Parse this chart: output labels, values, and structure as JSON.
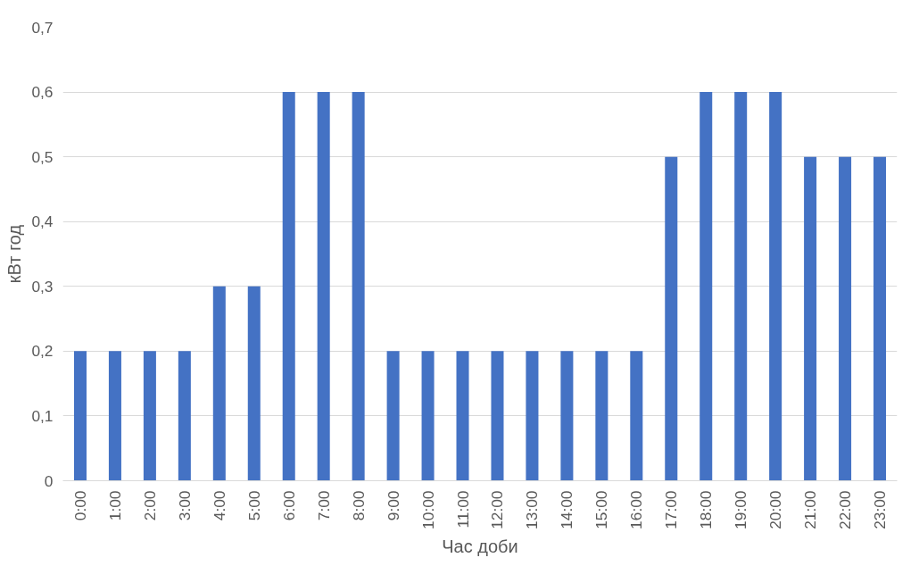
{
  "chart_data": {
    "type": "bar",
    "xlabel": "Час доби",
    "ylabel": "кВт год",
    "categories": [
      "0:00",
      "1:00",
      "2:00",
      "3:00",
      "4:00",
      "5:00",
      "6:00",
      "7:00",
      "8:00",
      "9:00",
      "10:00",
      "11:00",
      "12:00",
      "13:00",
      "14:00",
      "15:00",
      "16:00",
      "17:00",
      "18:00",
      "19:00",
      "20:00",
      "21:00",
      "22:00",
      "23:00"
    ],
    "values": [
      0.2,
      0.2,
      0.2,
      0.2,
      0.3,
      0.3,
      0.6,
      0.6,
      0.6,
      0.2,
      0.2,
      0.2,
      0.2,
      0.2,
      0.2,
      0.2,
      0.2,
      0.5,
      0.6,
      0.6,
      0.6,
      0.5,
      0.5,
      0.5
    ],
    "color": "#4472c4",
    "ylim": [
      0,
      0.7
    ],
    "yticks": [
      {
        "value": 0,
        "label": "0"
      },
      {
        "value": 0.1,
        "label": "0,1"
      },
      {
        "value": 0.2,
        "label": "0,2"
      },
      {
        "value": 0.3,
        "label": "0,3"
      },
      {
        "value": 0.4,
        "label": "0,4"
      },
      {
        "value": 0.5,
        "label": "0,5"
      },
      {
        "value": 0.6,
        "label": "0,6"
      },
      {
        "value": 0.7,
        "label": "0,7"
      }
    ],
    "grid": "y"
  }
}
